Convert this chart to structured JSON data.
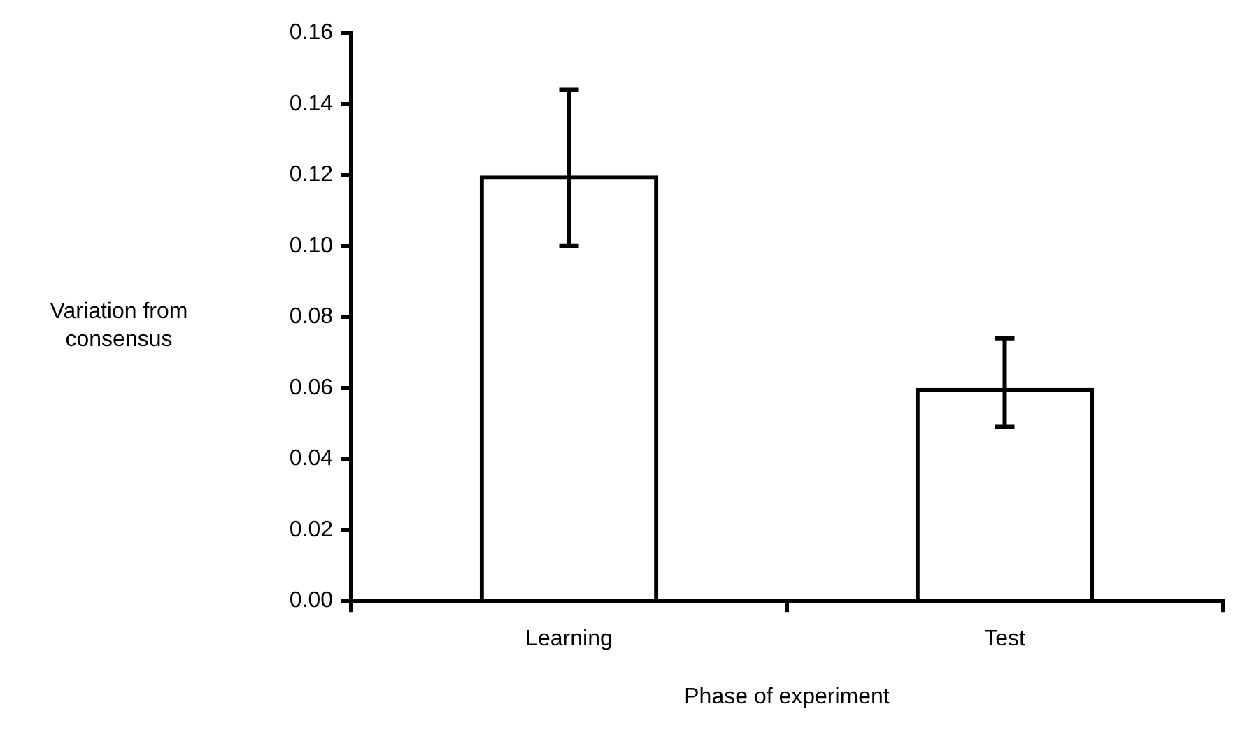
{
  "chart_data": {
    "type": "bar",
    "xlabel": "Phase of experiment",
    "ylabel": "Variation from consensus",
    "categories": [
      "Learning",
      "Test"
    ],
    "values": [
      0.12,
      0.06
    ],
    "errors": [
      [
        0.1,
        0.144
      ],
      [
        0.049,
        0.074
      ]
    ],
    "color": "#000000",
    "ylim": [
      0,
      0.16
    ],
    "yticks": [
      {
        "value": 0,
        "label": "0.00"
      },
      {
        "value": 0.02,
        "label": "0.02"
      },
      {
        "value": 0.04,
        "label": "0.04"
      },
      {
        "value": 0.06,
        "label": "0.06"
      },
      {
        "value": 0.08,
        "label": "0.08"
      },
      {
        "value": 0.1,
        "label": "0.10"
      },
      {
        "value": 0.12,
        "label": "0.12"
      },
      {
        "value": 0.14,
        "label": "0.14"
      },
      {
        "value": 0.16,
        "label": "0.16"
      }
    ],
    "grid": false,
    "legend": false
  }
}
